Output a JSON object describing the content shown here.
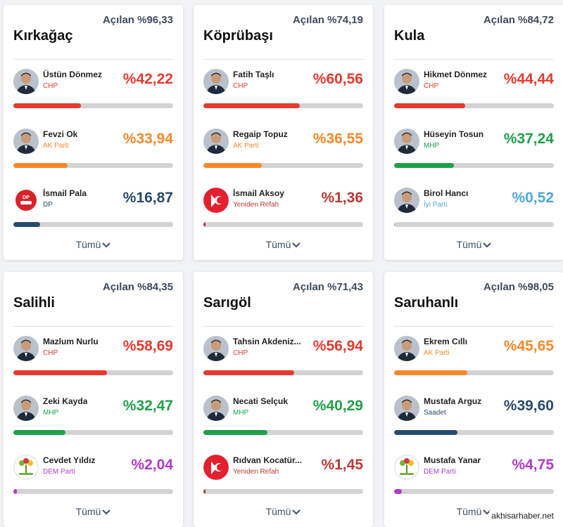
{
  "footer": {
    "source": "akhisarhaber.net"
  },
  "more_label": "Tümü",
  "cards": [
    {
      "district": "Kırkağaç",
      "opened": "Açılan %96,33",
      "candidates": [
        {
          "name": "Üstün Dönmez",
          "party": "CHP",
          "percent": "%42,22",
          "share": 42.22,
          "color": "#e53a2f",
          "avatar": "person-photo"
        },
        {
          "name": "Fevzi Ok",
          "party": "AK Parti",
          "percent": "%33,94",
          "share": 33.94,
          "color": "#f7892b",
          "avatar": "person-photo"
        },
        {
          "name": "İsmail Pala",
          "party": "DP",
          "percent": "%16,87",
          "share": 16.87,
          "color": "#2a4a6b",
          "avatar": "dp-logo"
        }
      ]
    },
    {
      "district": "Köprübaşı",
      "opened": "Açılan %74,19",
      "candidates": [
        {
          "name": "Fatih Taşlı",
          "party": "CHP",
          "percent": "%60,56",
          "share": 60.56,
          "color": "#e53a2f",
          "avatar": "person-photo"
        },
        {
          "name": "Regaip Topuz",
          "party": "AK Parti",
          "percent": "%36,55",
          "share": 36.55,
          "color": "#f7892b",
          "avatar": "person-photo"
        },
        {
          "name": "İsmail Aksoy",
          "party": "Yeniden Refah",
          "percent": "%1,36",
          "share": 1.36,
          "color": "#b83a32",
          "avatar": "yeniden-refah-logo"
        }
      ]
    },
    {
      "district": "Kula",
      "opened": "Açılan %84,72",
      "candidates": [
        {
          "name": "Hikmet Dönmez",
          "party": "CHP",
          "percent": "%44,44",
          "share": 44.44,
          "color": "#e53a2f",
          "avatar": "person-photo"
        },
        {
          "name": "Hüseyin Tosun",
          "party": "MHP",
          "percent": "%37,24",
          "share": 37.24,
          "color": "#20a04a",
          "avatar": "person-photo"
        },
        {
          "name": "Birol Hancı",
          "party": "İyi Parti",
          "percent": "%0,52",
          "share": 0.52,
          "color": "#4fa8d8",
          "avatar": "person-photo"
        }
      ]
    },
    {
      "district": "Salihli",
      "opened": "Açılan %84,35",
      "candidates": [
        {
          "name": "Mazlum Nurlu",
          "party": "CHP",
          "percent": "%58,69",
          "share": 58.69,
          "color": "#e53a2f",
          "avatar": "person-photo"
        },
        {
          "name": "Zeki Kayda",
          "party": "MHP",
          "percent": "%32,47",
          "share": 32.47,
          "color": "#20a04a",
          "avatar": "person-photo"
        },
        {
          "name": "Cevdet Yıldız",
          "party": "DEM Parti",
          "percent": "%2,04",
          "share": 2.04,
          "color": "#b23ac9",
          "avatar": "dem-logo"
        }
      ]
    },
    {
      "district": "Sarıgöl",
      "opened": "Açılan %71,43",
      "candidates": [
        {
          "name": "Tahsin Akdeniz...",
          "party": "CHP",
          "percent": "%56,94",
          "share": 56.94,
          "color": "#e53a2f",
          "avatar": "person-photo"
        },
        {
          "name": "Necati Selçuk",
          "party": "MHP",
          "percent": "%40,29",
          "share": 40.29,
          "color": "#20a04a",
          "avatar": "person-photo"
        },
        {
          "name": "Rıdvan Kocatür...",
          "party": "Yeniden Refah",
          "percent": "%1,45",
          "share": 1.45,
          "color": "#b83a32",
          "avatar": "yeniden-refah-logo"
        }
      ]
    },
    {
      "district": "Saruhanlı",
      "opened": "Açılan %98,05",
      "candidates": [
        {
          "name": "Ekrem Cıllı",
          "party": "AK Parti",
          "percent": "%45,65",
          "share": 45.65,
          "color": "#f7892b",
          "avatar": "person-photo"
        },
        {
          "name": "Mustafa Arguz",
          "party": "Saadet",
          "percent": "%39,60",
          "share": 39.6,
          "color": "#2a4a6b",
          "avatar": "person-photo"
        },
        {
          "name": "Mustafa Yanar",
          "party": "DEM Parti",
          "percent": "%4,75",
          "share": 4.75,
          "color": "#b23ac9",
          "avatar": "dem-logo"
        }
      ]
    }
  ]
}
